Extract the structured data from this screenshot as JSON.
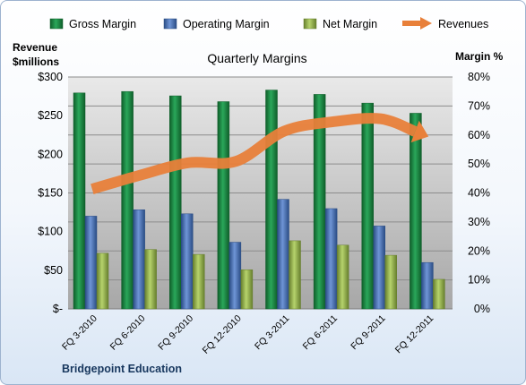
{
  "chart_data": {
    "type": "bar",
    "title": "Quarterly Margins",
    "categories": [
      "FQ 3-2010",
      "FQ 6-2010",
      "FQ 9-2010",
      "FQ 12-2010",
      "FQ 3-2011",
      "FQ 6-2011",
      "FQ 9-2011",
      "FQ 12-2011"
    ],
    "series": [
      {
        "name": "Gross Margin",
        "axis": "right",
        "unit": "%",
        "color": "#1e8c44",
        "values": [
          74.5,
          75,
          73.5,
          71.5,
          75.5,
          74,
          71,
          67.5
        ]
      },
      {
        "name": "Operating Margin",
        "axis": "right",
        "unit": "%",
        "color": "#4472c4",
        "values": [
          32,
          34.2,
          32.8,
          23,
          37.8,
          34.6,
          28.6,
          16
        ]
      },
      {
        "name": "Net Margin",
        "axis": "right",
        "unit": "%",
        "color": "#9bbb59",
        "values": [
          19.2,
          20.5,
          18.8,
          13.5,
          23.5,
          22,
          18.5,
          10.2
        ]
      },
      {
        "name": "Revenues",
        "axis": "left",
        "type": "line",
        "unit": "$millions",
        "color": "#e8803a",
        "values": [
          155,
          173,
          189,
          191,
          230,
          242,
          246,
          223
        ]
      }
    ],
    "y_left": {
      "label_line1": "Revenue",
      "label_line2": "$millions",
      "ylim": [
        0,
        300
      ],
      "ticks": [
        "$-",
        "$50",
        "$100",
        "$150",
        "$200",
        "$250",
        "$300"
      ]
    },
    "y_right": {
      "label": "Margin %",
      "ylim": [
        0,
        80
      ],
      "ticks": [
        "0%",
        "10%",
        "20%",
        "30%",
        "40%",
        "50%",
        "60%",
        "70%",
        "80%"
      ]
    },
    "grid": true,
    "legend_position": "top"
  },
  "footer": {
    "company": "Bridgepoint Education"
  }
}
